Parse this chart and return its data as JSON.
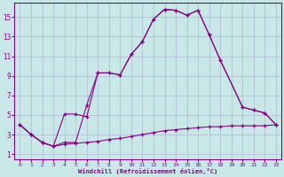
{
  "xlabel": "Windchill (Refroidissement éolien,°C)",
  "bg_color": "#c8e8e8",
  "line_color": "#880088",
  "grid_color": "#aabbcc",
  "line1_x": [
    0,
    1,
    2,
    3,
    4,
    5,
    6,
    7,
    8,
    9,
    10,
    11,
    12,
    13,
    14,
    15,
    16,
    17,
    18,
    20,
    21,
    22,
    23
  ],
  "line1_y": [
    4.0,
    3.0,
    2.2,
    1.8,
    5.1,
    5.1,
    4.8,
    9.3,
    9.3,
    9.1,
    11.2,
    12.5,
    14.8,
    15.8,
    15.7,
    15.2,
    15.7,
    13.2,
    10.6,
    5.8,
    5.5,
    5.2,
    4.0
  ],
  "line2_x": [
    0,
    1,
    2,
    3,
    4,
    5,
    6,
    7,
    8,
    9,
    10,
    11,
    12,
    13,
    14,
    15,
    16,
    17,
    18,
    20,
    21,
    22,
    23
  ],
  "line2_y": [
    4.0,
    3.0,
    2.2,
    1.8,
    2.2,
    2.2,
    6.0,
    9.3,
    9.3,
    9.1,
    11.2,
    12.5,
    14.8,
    15.8,
    15.7,
    15.2,
    15.7,
    13.2,
    10.6,
    5.8,
    5.5,
    5.2,
    4.0
  ],
  "line3_x": [
    0,
    1,
    2,
    3,
    4,
    5,
    6,
    7,
    8,
    9,
    10,
    11,
    12,
    13,
    14,
    15,
    16,
    17,
    18,
    19,
    20,
    21,
    22,
    23
  ],
  "line3_y": [
    4.0,
    3.0,
    2.2,
    1.8,
    2.0,
    2.1,
    2.2,
    2.3,
    2.5,
    2.6,
    2.8,
    3.0,
    3.2,
    3.4,
    3.5,
    3.6,
    3.7,
    3.8,
    3.8,
    3.9,
    3.9,
    3.9,
    3.9,
    4.0
  ],
  "xlim": [
    -0.5,
    23.5
  ],
  "ylim": [
    0.5,
    16.5
  ],
  "yticks": [
    1,
    3,
    5,
    7,
    9,
    11,
    13,
    15
  ],
  "xticks": [
    0,
    1,
    2,
    3,
    4,
    5,
    6,
    7,
    8,
    9,
    10,
    11,
    12,
    13,
    14,
    15,
    16,
    17,
    18,
    19,
    20,
    21,
    22,
    23
  ],
  "figsize": [
    3.2,
    2.0
  ],
  "dpi": 100
}
